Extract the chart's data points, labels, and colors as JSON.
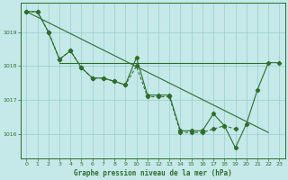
{
  "title": "Graphe pression niveau de la mer (hPa)",
  "background_color": "#c5e8e8",
  "grid_color": "#9acece",
  "line_color": "#2d6e2d",
  "xlim": [
    -0.5,
    23.5
  ],
  "ylim": [
    1015.3,
    1019.85
  ],
  "yticks": [
    1016,
    1017,
    1018,
    1019
  ],
  "xticks": [
    0,
    1,
    2,
    3,
    4,
    5,
    6,
    7,
    8,
    9,
    10,
    11,
    12,
    13,
    14,
    15,
    16,
    17,
    18,
    19,
    20,
    21,
    22,
    23
  ],
  "s_zigzag": [
    1019.6,
    1019.6,
    1019.0,
    1018.2,
    1018.45,
    1017.95,
    1017.65,
    1017.65,
    1017.55,
    1017.45,
    1018.25,
    1017.15,
    1017.15,
    1017.15,
    1016.1,
    1016.1,
    1016.1,
    1016.6,
    1016.25,
    1015.6,
    1016.3,
    1017.3,
    1018.1,
    1018.1
  ],
  "s_zigzag2": [
    1019.6,
    1019.6,
    1019.0,
    1018.2,
    1018.45,
    1017.95,
    1017.65,
    1017.65,
    1017.55,
    1017.45,
    1018.0,
    1017.1,
    1017.1,
    1017.1,
    1016.05,
    1016.05,
    1016.05,
    1016.15,
    1016.25,
    1016.15,
    null,
    null,
    null,
    null
  ],
  "flat_line_x": [
    3,
    13
  ],
  "flat_line_y": [
    1018.1,
    1018.1
  ],
  "flat_line2_x": [
    13,
    22
  ],
  "flat_line2_y": [
    1018.1,
    1018.1
  ],
  "trend_x": [
    0,
    22
  ],
  "trend_y": [
    1019.6,
    1016.05
  ]
}
